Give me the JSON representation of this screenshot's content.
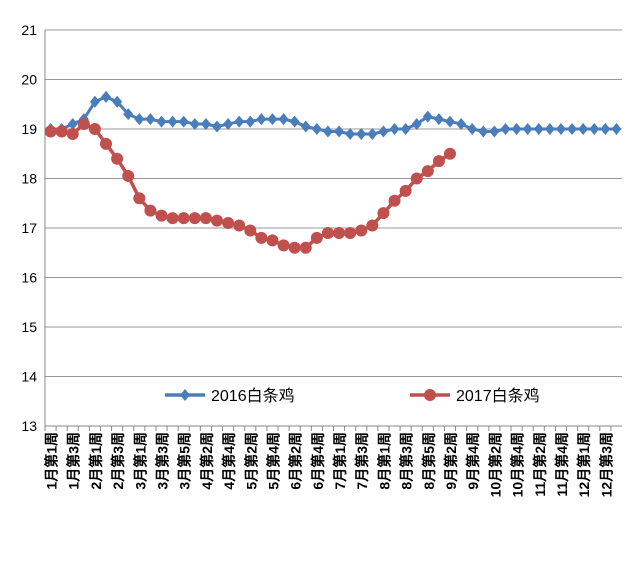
{
  "chart_data": {
    "type": "line",
    "categories": [
      "1月第1周",
      null,
      "1月第3周",
      null,
      "2月第1周",
      null,
      "2月第3周",
      null,
      "3月第1周",
      null,
      "3月第3周",
      null,
      "3月第5周",
      null,
      "4月第2周",
      null,
      "4月第4周",
      null,
      "5月第2周",
      null,
      "5月第4周",
      null,
      "6月第2周",
      null,
      "6月第4周",
      null,
      "7月第1周",
      null,
      "7月第3周",
      null,
      "8月第1周",
      null,
      "8月第3周",
      null,
      "8月第5周",
      null,
      "9月第2周",
      null,
      "9月第4周",
      null,
      "10月第2周",
      null,
      "10月第4周",
      null,
      "11月第2周",
      null,
      "11月第4周",
      null,
      "12月第1周",
      null,
      "12月第3周",
      null
    ],
    "series": [
      {
        "name": "2016白条鸡",
        "color": "#4a7ebb",
        "marker": "diamond",
        "values": [
          19.0,
          19.0,
          19.1,
          19.2,
          19.55,
          19.65,
          19.55,
          19.3,
          19.2,
          19.2,
          19.15,
          19.15,
          19.15,
          19.1,
          19.1,
          19.05,
          19.1,
          19.15,
          19.15,
          19.2,
          19.2,
          19.2,
          19.15,
          19.05,
          19.0,
          18.95,
          18.95,
          18.9,
          18.9,
          18.9,
          18.95,
          19.0,
          19.0,
          19.1,
          19.25,
          19.2,
          19.15,
          19.1,
          19.0,
          18.95,
          18.95,
          19.0,
          19.0,
          19.0,
          19.0,
          19.0,
          19.0,
          19.0,
          19.0,
          19.0,
          19.0,
          19.0
        ]
      },
      {
        "name": "2017白条鸡",
        "color": "#c0504d",
        "marker": "circle",
        "values": [
          18.95,
          18.95,
          18.9,
          19.1,
          19.0,
          18.7,
          18.4,
          18.05,
          17.6,
          17.35,
          17.25,
          17.2,
          17.2,
          17.2,
          17.2,
          17.15,
          17.1,
          17.05,
          16.95,
          16.8,
          16.75,
          16.65,
          16.6,
          16.6,
          16.8,
          16.9,
          16.9,
          16.9,
          16.95,
          17.05,
          17.3,
          17.55,
          17.75,
          18.0,
          18.15,
          18.35,
          18.5,
          null,
          null,
          null,
          null,
          null,
          null,
          null,
          null,
          null,
          null,
          null,
          null,
          null,
          null,
          null
        ]
      }
    ],
    "ylim": [
      13,
      21
    ],
    "yticks": [
      13,
      14,
      15,
      16,
      17,
      18,
      19,
      20,
      21
    ],
    "grid": true,
    "legend": "bottom"
  }
}
